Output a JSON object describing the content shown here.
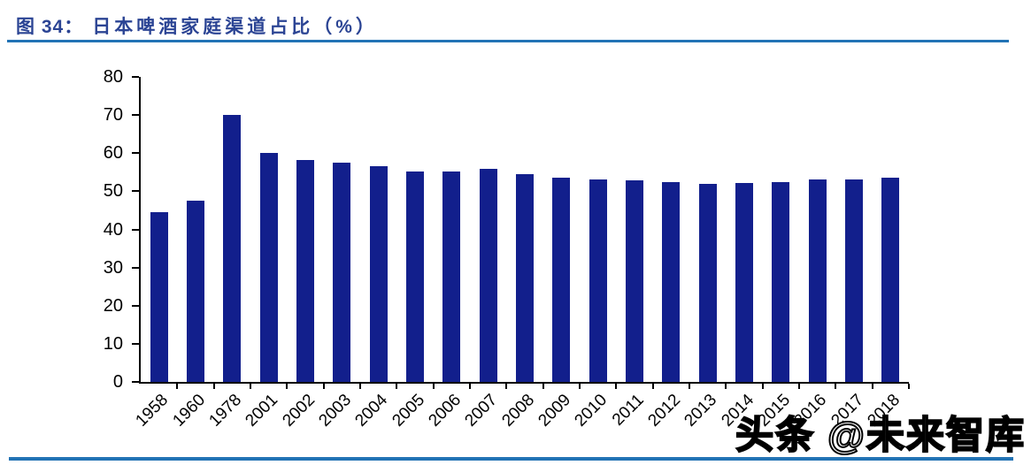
{
  "caption": {
    "prefix": "图 34：",
    "title": "日本啤酒家庭渠道占比（%）"
  },
  "watermark": "头条 @未来智库",
  "colors": {
    "bar": "#121F8C",
    "title_text": "#2B4494",
    "rule": "#2273B5",
    "axis": "#000000"
  },
  "chart_data": {
    "type": "bar",
    "title": "日本啤酒家庭渠道占比（%）",
    "xlabel": "",
    "ylabel": "",
    "categories": [
      "1958",
      "1960",
      "1978",
      "2001",
      "2002",
      "2003",
      "2004",
      "2005",
      "2006",
      "2007",
      "2008",
      "2009",
      "2010",
      "2011",
      "2012",
      "2013",
      "2014",
      "2015",
      "2016",
      "2017",
      "2018"
    ],
    "values": [
      44.5,
      47.5,
      70,
      60,
      58.2,
      57.4,
      56.6,
      55.3,
      55.2,
      56,
      54.4,
      53.5,
      53,
      52.8,
      52.5,
      52,
      52.2,
      52.5,
      53.1,
      53,
      53.6
    ],
    "ylim": [
      0,
      80
    ],
    "yticks": [
      0,
      10,
      20,
      30,
      40,
      50,
      60,
      70,
      80
    ],
    "grid": false,
    "legend": null,
    "bar_color": "#121F8C"
  }
}
